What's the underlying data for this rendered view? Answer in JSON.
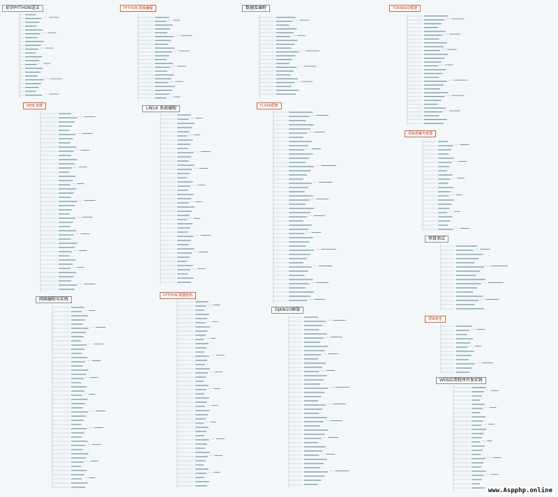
{
  "topics": [
    {
      "id": "python-basics",
      "label": "初识PYTHON语法"
    },
    {
      "id": "python-advanced",
      "label": "PYTHON 高级编程"
    },
    {
      "id": "database",
      "label": "数据库编程"
    },
    {
      "id": "tornado",
      "label": "TORNADO框架"
    },
    {
      "id": "web",
      "label": "WEB 前端"
    },
    {
      "id": "linux",
      "label": "LINUX 系统编程"
    },
    {
      "id": "flask",
      "label": "FLASK框架"
    },
    {
      "id": "project-deploy",
      "label": "项目部署与管理"
    },
    {
      "id": "network",
      "label": "网络编程与实践"
    },
    {
      "id": "data-structures",
      "label": "PYTHON 数据结构"
    },
    {
      "id": "django",
      "label": "DJANGO框架"
    },
    {
      "id": "project-test",
      "label": "项目测试"
    },
    {
      "id": "project-security",
      "label": "项目安全"
    },
    {
      "id": "webapp",
      "label": "WEB应用程序开发实践"
    }
  ],
  "watermark": "www.Aspphp.online"
}
